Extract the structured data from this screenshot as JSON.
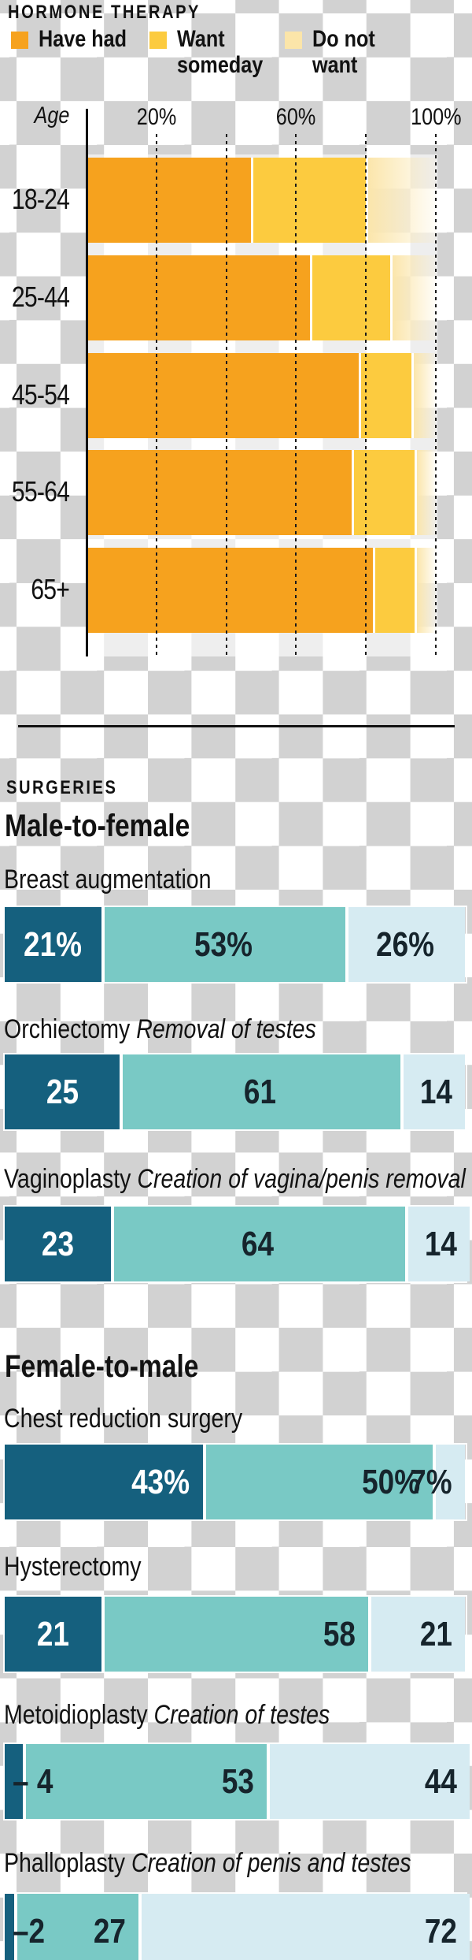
{
  "background": {
    "style": "transparency-checkerboard",
    "checker_gray": "#D2D2D2",
    "checker_white": "#FFFFFF"
  },
  "colors": {
    "hormone": {
      "have_had": "#F6A21E",
      "want_someday": "#FCCB3F",
      "do_not_want": "#FBE5A9"
    },
    "surgery": {
      "have_had": "#15607E",
      "want_someday": "#79C9C5",
      "do_not_want": "#D6EBF2"
    },
    "text": "#121212",
    "value_on_dark": "#FFFFFF",
    "value_on_light": "#16242C"
  },
  "chart_data": [
    {
      "type": "bar",
      "variant": "horizontal-stacked",
      "title": "HORMONE THERAPY",
      "unit": "percent",
      "legend_position": "top",
      "categories": [
        "18-24",
        "25-44",
        "45-54",
        "55-64",
        "65+"
      ],
      "series": [
        {
          "name": "Have had",
          "color": "#F6A21E",
          "values": [
            47,
            64,
            78,
            76,
            82
          ]
        },
        {
          "name": "Want someday",
          "color": "#FCCB3F",
          "values": [
            33,
            23,
            15,
            18,
            12
          ]
        },
        {
          "name": "Do not want",
          "color": "#FBE5A9",
          "fade_right": true,
          "values": [
            20,
            13,
            7,
            6,
            6
          ]
        }
      ],
      "x_axis": {
        "label": "Age",
        "range": [
          0,
          100
        ],
        "tick_labels": [
          "20%",
          "60%",
          "100%"
        ],
        "gridlines_percent": [
          20,
          40,
          60,
          80,
          100
        ],
        "grid": "dotted"
      }
    },
    {
      "type": "bar",
      "variant": "horizontal-stacked",
      "title": "SURGERIES",
      "unit": "percent",
      "series_names": [
        "Have had",
        "Want someday",
        "Do not want"
      ],
      "groups": [
        {
          "title": "Male-to-female",
          "rows": [
            {
              "procedure": "Breast augmentation",
              "note": "",
              "values": [
                21,
                53,
                26
              ],
              "labels": [
                "21%",
                "53%",
                "26%"
              ],
              "aligns": [
                "c",
                "c",
                "c"
              ]
            },
            {
              "procedure": "Orchiectomy",
              "note": "Removal of testes",
              "values": [
                25,
                61,
                14
              ],
              "labels": [
                "25",
                "61",
                "14"
              ],
              "aligns": [
                "c",
                "c",
                "r"
              ]
            },
            {
              "procedure": "Vaginoplasty",
              "note": "Creation of vagina/penis removal",
              "values": [
                23,
                64,
                14
              ],
              "labels": [
                "23",
                "64",
                "14"
              ],
              "aligns": [
                "c",
                "c",
                "r"
              ]
            }
          ]
        },
        {
          "title": "Female-to-male",
          "rows": [
            {
              "procedure": "Chest reduction surgery",
              "note": "",
              "values": [
                43,
                50,
                7
              ],
              "labels": [
                "43%",
                "50%",
                "7%"
              ],
              "aligns": [
                "r",
                "r",
                "r"
              ]
            },
            {
              "procedure": "Hysterectomy",
              "note": "",
              "values": [
                21,
                58,
                21
              ],
              "labels": [
                "21",
                "58",
                "21"
              ],
              "aligns": [
                "c",
                "r",
                "r"
              ]
            },
            {
              "procedure": "Metoidioplasty",
              "note": "Creation of testes",
              "values": [
                4,
                53,
                44
              ],
              "labels": [
                "– 4",
                "53",
                "44"
              ],
              "aligns": [
                "callout",
                "r",
                "r"
              ]
            },
            {
              "procedure": "Phalloplasty",
              "note": "Creation of penis and testes",
              "values": [
                2,
                27,
                72
              ],
              "labels": [
                "–2",
                "27",
                "72"
              ],
              "aligns": [
                "callout",
                "r",
                "r"
              ]
            }
          ]
        }
      ]
    }
  ]
}
